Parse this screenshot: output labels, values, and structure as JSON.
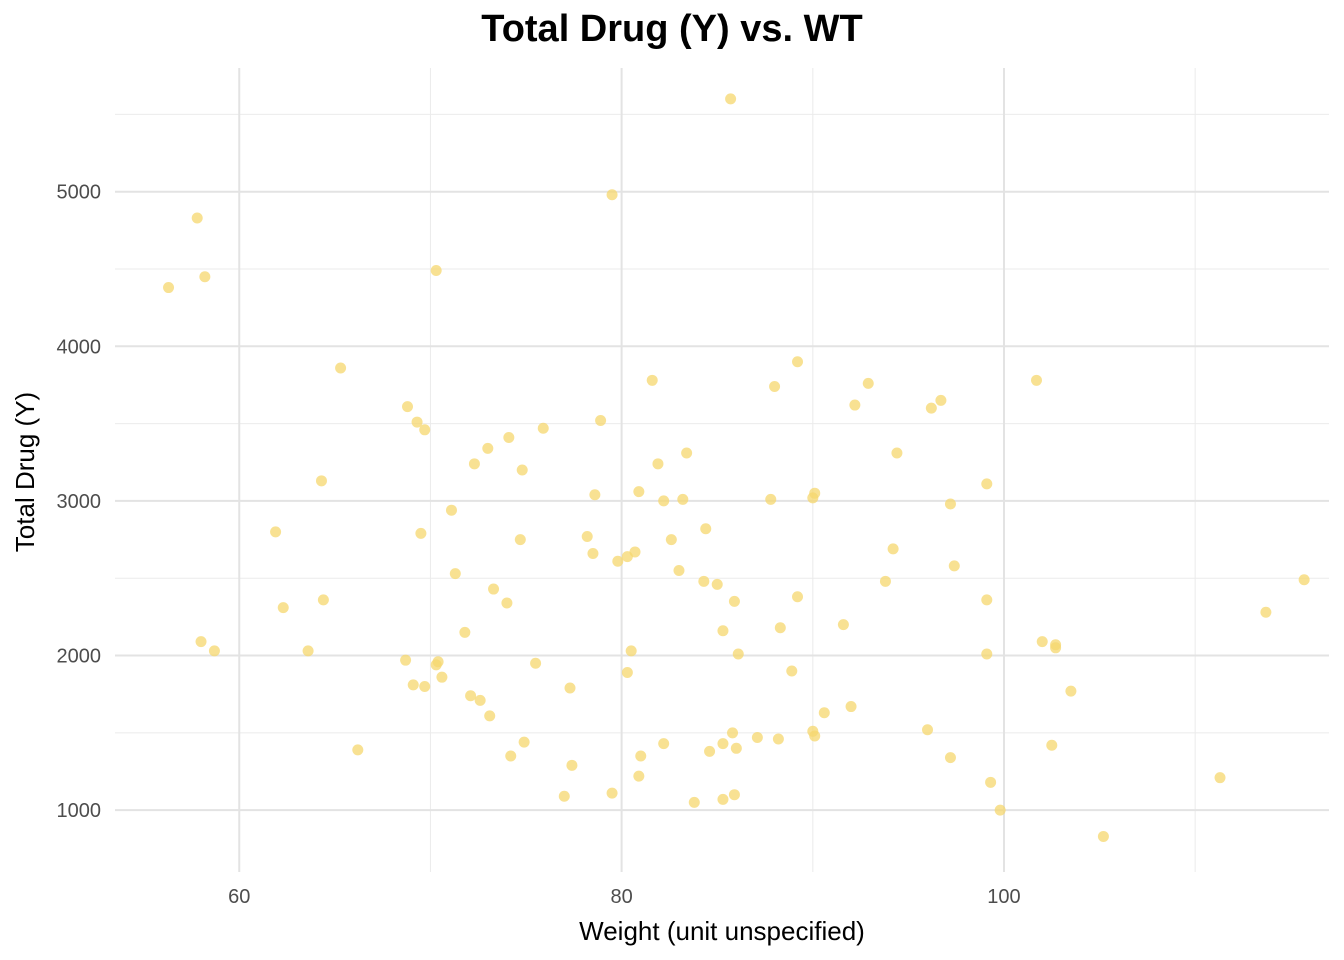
{
  "chart_data": {
    "type": "scatter",
    "title": "Total Drug (Y) vs. WT",
    "xlabel": "Weight (unit unspecified)",
    "ylabel": "Total Drug (Y)",
    "xlim": [
      53.5,
      117
    ],
    "ylim": [
      600,
      5800
    ],
    "x_ticks": [
      60,
      80,
      100
    ],
    "x_tick_labels": [
      "60",
      "80",
      "100"
    ],
    "y_ticks": [
      1000,
      2000,
      3000,
      4000,
      5000
    ],
    "y_tick_labels": [
      "1000",
      "2000",
      "3000",
      "4000",
      "5000"
    ],
    "grid": true,
    "point_color": "#F5D76E",
    "points": [
      {
        "x": 56.3,
        "y": 4380
      },
      {
        "x": 57.8,
        "y": 4830
      },
      {
        "x": 58.2,
        "y": 4450
      },
      {
        "x": 58.0,
        "y": 2090
      },
      {
        "x": 58.7,
        "y": 2030
      },
      {
        "x": 61.9,
        "y": 2800
      },
      {
        "x": 62.3,
        "y": 2310
      },
      {
        "x": 63.6,
        "y": 2030
      },
      {
        "x": 64.3,
        "y": 3130
      },
      {
        "x": 64.4,
        "y": 2360
      },
      {
        "x": 65.3,
        "y": 3860
      },
      {
        "x": 66.2,
        "y": 1390
      },
      {
        "x": 68.8,
        "y": 3610
      },
      {
        "x": 68.7,
        "y": 1970
      },
      {
        "x": 69.1,
        "y": 1810
      },
      {
        "x": 69.3,
        "y": 3510
      },
      {
        "x": 69.5,
        "y": 2790
      },
      {
        "x": 69.7,
        "y": 3460
      },
      {
        "x": 69.7,
        "y": 1800
      },
      {
        "x": 70.3,
        "y": 4490
      },
      {
        "x": 70.3,
        "y": 1940
      },
      {
        "x": 70.4,
        "y": 1960
      },
      {
        "x": 70.6,
        "y": 1860
      },
      {
        "x": 71.1,
        "y": 2940
      },
      {
        "x": 71.3,
        "y": 2530
      },
      {
        "x": 71.8,
        "y": 2150
      },
      {
        "x": 72.1,
        "y": 1740
      },
      {
        "x": 72.3,
        "y": 3240
      },
      {
        "x": 72.6,
        "y": 1710
      },
      {
        "x": 73.0,
        "y": 3340
      },
      {
        "x": 73.1,
        "y": 1610
      },
      {
        "x": 73.3,
        "y": 2430
      },
      {
        "x": 74.0,
        "y": 2340
      },
      {
        "x": 74.1,
        "y": 3410
      },
      {
        "x": 74.2,
        "y": 1350
      },
      {
        "x": 74.7,
        "y": 2750
      },
      {
        "x": 74.8,
        "y": 3200
      },
      {
        "x": 74.9,
        "y": 1440
      },
      {
        "x": 75.5,
        "y": 1950
      },
      {
        "x": 75.9,
        "y": 3470
      },
      {
        "x": 77.0,
        "y": 1090
      },
      {
        "x": 77.3,
        "y": 1790
      },
      {
        "x": 77.4,
        "y": 1290
      },
      {
        "x": 78.2,
        "y": 2770
      },
      {
        "x": 78.5,
        "y": 2660
      },
      {
        "x": 78.6,
        "y": 3040
      },
      {
        "x": 78.9,
        "y": 3520
      },
      {
        "x": 79.5,
        "y": 1110
      },
      {
        "x": 79.5,
        "y": 4980
      },
      {
        "x": 79.8,
        "y": 2610
      },
      {
        "x": 80.3,
        "y": 2640
      },
      {
        "x": 80.3,
        "y": 1890
      },
      {
        "x": 80.5,
        "y": 2030
      },
      {
        "x": 80.7,
        "y": 2670
      },
      {
        "x": 80.9,
        "y": 1220
      },
      {
        "x": 80.9,
        "y": 3060
      },
      {
        "x": 81.0,
        "y": 1350
      },
      {
        "x": 81.6,
        "y": 3780
      },
      {
        "x": 81.9,
        "y": 3240
      },
      {
        "x": 82.2,
        "y": 1430
      },
      {
        "x": 82.2,
        "y": 3000
      },
      {
        "x": 82.6,
        "y": 2750
      },
      {
        "x": 83.0,
        "y": 2550
      },
      {
        "x": 83.2,
        "y": 3010
      },
      {
        "x": 83.4,
        "y": 3310
      },
      {
        "x": 83.8,
        "y": 1050
      },
      {
        "x": 84.3,
        "y": 2480
      },
      {
        "x": 84.4,
        "y": 2820
      },
      {
        "x": 84.6,
        "y": 1380
      },
      {
        "x": 85.0,
        "y": 2460
      },
      {
        "x": 85.3,
        "y": 2160
      },
      {
        "x": 85.3,
        "y": 1430
      },
      {
        "x": 85.3,
        "y": 1070
      },
      {
        "x": 85.7,
        "y": 5600
      },
      {
        "x": 85.8,
        "y": 1500
      },
      {
        "x": 85.9,
        "y": 2350
      },
      {
        "x": 85.9,
        "y": 1100
      },
      {
        "x": 86.0,
        "y": 1400
      },
      {
        "x": 86.1,
        "y": 2010
      },
      {
        "x": 87.1,
        "y": 1470
      },
      {
        "x": 87.8,
        "y": 3010
      },
      {
        "x": 88.0,
        "y": 3740
      },
      {
        "x": 88.2,
        "y": 1460
      },
      {
        "x": 88.3,
        "y": 2180
      },
      {
        "x": 88.9,
        "y": 1900
      },
      {
        "x": 89.2,
        "y": 3900
      },
      {
        "x": 89.2,
        "y": 2380
      },
      {
        "x": 90.0,
        "y": 3020
      },
      {
        "x": 90.0,
        "y": 1510
      },
      {
        "x": 90.1,
        "y": 3050
      },
      {
        "x": 90.1,
        "y": 1480
      },
      {
        "x": 90.6,
        "y": 1630
      },
      {
        "x": 91.6,
        "y": 2200
      },
      {
        "x": 92.0,
        "y": 1670
      },
      {
        "x": 92.2,
        "y": 3620
      },
      {
        "x": 92.9,
        "y": 3760
      },
      {
        "x": 93.8,
        "y": 2480
      },
      {
        "x": 94.2,
        "y": 2690
      },
      {
        "x": 94.4,
        "y": 3310
      },
      {
        "x": 96.0,
        "y": 1520
      },
      {
        "x": 96.2,
        "y": 3600
      },
      {
        "x": 96.7,
        "y": 3650
      },
      {
        "x": 97.2,
        "y": 1340
      },
      {
        "x": 97.2,
        "y": 2980
      },
      {
        "x": 97.4,
        "y": 2580
      },
      {
        "x": 99.1,
        "y": 3110
      },
      {
        "x": 99.1,
        "y": 2360
      },
      {
        "x": 99.1,
        "y": 2010
      },
      {
        "x": 99.3,
        "y": 1180
      },
      {
        "x": 99.8,
        "y": 1000
      },
      {
        "x": 101.7,
        "y": 3780
      },
      {
        "x": 102.0,
        "y": 2090
      },
      {
        "x": 102.5,
        "y": 1420
      },
      {
        "x": 102.7,
        "y": 2070
      },
      {
        "x": 102.7,
        "y": 2050
      },
      {
        "x": 103.5,
        "y": 1770
      },
      {
        "x": 105.2,
        "y": 830
      },
      {
        "x": 111.3,
        "y": 1210
      },
      {
        "x": 113.7,
        "y": 2280
      },
      {
        "x": 115.7,
        "y": 2490
      }
    ]
  }
}
